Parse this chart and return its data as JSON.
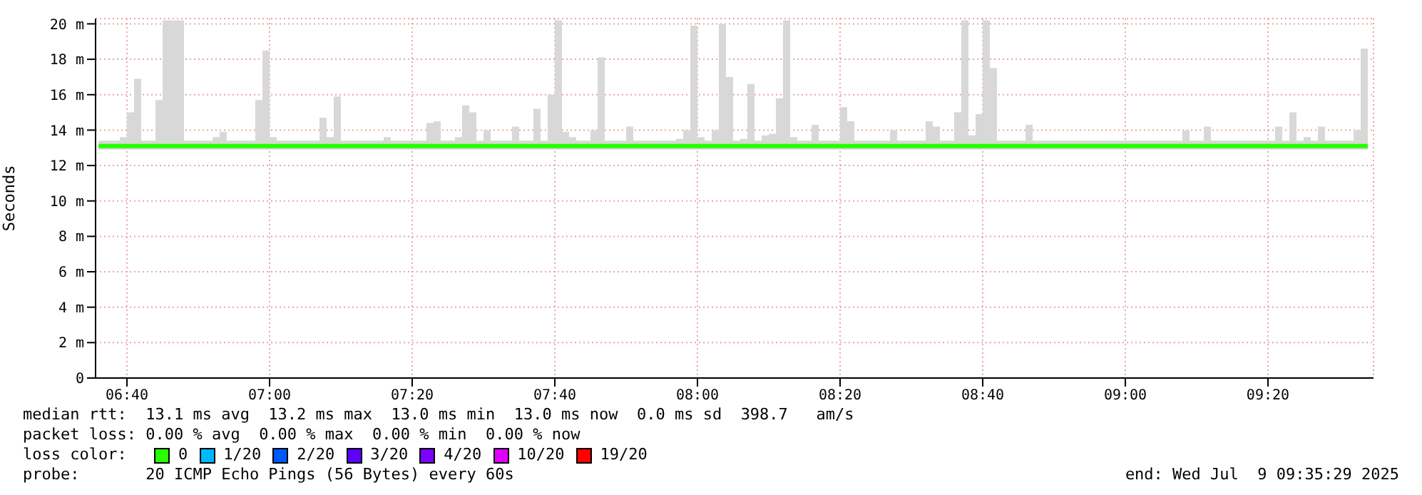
{
  "chart_data": {
    "type": "step",
    "ylabel": "Seconds",
    "grid": true,
    "xlim": [
      6.5933,
      9.58
    ],
    "xticks": [
      {
        "value": 6.6667,
        "label": "06:40"
      },
      {
        "value": 7,
        "label": "07:00"
      },
      {
        "value": 7.3333,
        "label": "07:20"
      },
      {
        "value": 7.6667,
        "label": "07:40"
      },
      {
        "value": 8,
        "label": "08:00"
      },
      {
        "value": 8.3333,
        "label": "08:20"
      },
      {
        "value": 8.6667,
        "label": "08:40"
      },
      {
        "value": 9,
        "label": "09:00"
      },
      {
        "value": 9.3333,
        "label": "09:20"
      }
    ],
    "ylim": [
      0,
      20.3
    ],
    "yticks": [
      0,
      {
        "value": 2,
        "label": "2 m"
      },
      {
        "value": 4,
        "label": "4 m"
      },
      {
        "value": 6,
        "label": "6 m"
      },
      {
        "value": 8,
        "label": "8 m"
      },
      {
        "value": 10,
        "label": "10 m"
      },
      {
        "value": 12,
        "label": "12 m"
      },
      {
        "value": 14,
        "label": "14 m"
      },
      {
        "value": 16,
        "label": "16 m"
      },
      {
        "value": 18,
        "label": "18 m"
      },
      {
        "value": 20,
        "label": "20 m"
      }
    ],
    "x": [
      6.6,
      6.6167,
      6.6333,
      6.65,
      6.6667,
      6.6833,
      6.7,
      6.7167,
      6.7333,
      6.75,
      6.7667,
      6.7833,
      6.8,
      6.8167,
      6.8333,
      6.85,
      6.8667,
      6.8833,
      6.9,
      6.9167,
      6.9333,
      6.95,
      6.9667,
      6.9833,
      7.0,
      7.0167,
      7.0333,
      7.05,
      7.0667,
      7.0833,
      7.1,
      7.1167,
      7.1333,
      7.15,
      7.1667,
      7.1833,
      7.2,
      7.2167,
      7.2333,
      7.25,
      7.2667,
      7.2833,
      7.3,
      7.3167,
      7.3333,
      7.35,
      7.3667,
      7.3833,
      7.4,
      7.4167,
      7.4333,
      7.45,
      7.4667,
      7.4833,
      7.5,
      7.5167,
      7.5333,
      7.55,
      7.5667,
      7.5833,
      7.6,
      7.6167,
      7.6333,
      7.65,
      7.6667,
      7.6833,
      7.7,
      7.7167,
      7.7333,
      7.75,
      7.7667,
      7.7833,
      7.8,
      7.8167,
      7.8333,
      7.85,
      7.8667,
      7.8833,
      7.9,
      7.9167,
      7.9333,
      7.95,
      7.9667,
      7.9833,
      8.0,
      8.0167,
      8.0333,
      8.05,
      8.0667,
      8.0833,
      8.1,
      8.1167,
      8.1333,
      8.15,
      8.1667,
      8.1833,
      8.2,
      8.2167,
      8.2333,
      8.25,
      8.2667,
      8.2833,
      8.3,
      8.3167,
      8.3333,
      8.35,
      8.3667,
      8.3833,
      8.4,
      8.4167,
      8.4333,
      8.45,
      8.4667,
      8.4833,
      8.5,
      8.5167,
      8.5333,
      8.55,
      8.5667,
      8.5833,
      8.6,
      8.6167,
      8.6333,
      8.65,
      8.6667,
      8.6833,
      8.7,
      8.7167,
      8.7333,
      8.75,
      8.7667,
      8.7833,
      8.8,
      8.8167,
      8.8333,
      8.85,
      8.8667,
      8.8833,
      8.9,
      8.9167,
      8.9333,
      8.95,
      8.9667,
      8.9833,
      9.0,
      9.0167,
      9.0333,
      9.05,
      9.0667,
      9.0833,
      9.1,
      9.1167,
      9.1333,
      9.15,
      9.1667,
      9.1833,
      9.2,
      9.2167,
      9.2333,
      9.25,
      9.2667,
      9.2833,
      9.3,
      9.3167,
      9.3333,
      9.35,
      9.3667,
      9.3833,
      9.4,
      9.4167,
      9.4333,
      9.45,
      9.4667,
      9.4833,
      9.5,
      9.5167,
      9.5333,
      9.55,
      9.5667
    ],
    "series": [
      {
        "color": "#26ff00",
        "values": [
          13.1,
          13.1,
          13.1,
          13.1,
          13.1,
          13.1,
          13.1,
          13.1,
          13.1,
          13.1,
          13.1,
          13.1,
          13.1,
          13.1,
          13.1,
          13.1,
          13.1,
          13.1,
          13.1,
          13.1,
          13.1,
          13.1,
          13.1,
          13.1,
          13.1,
          13.1,
          13.1,
          13.1,
          13.1,
          13.1,
          13.1,
          13.1,
          13.1,
          13.1,
          13.1,
          13.1,
          13.1,
          13.1,
          13.1,
          13.1,
          13.1,
          13.1,
          13.1,
          13.1,
          13.1,
          13.1,
          13.1,
          13.1,
          13.1,
          13.1,
          13.1,
          13.1,
          13.1,
          13.1,
          13.1,
          13.1,
          13.1,
          13.1,
          13.1,
          13.1,
          13.1,
          13.1,
          13.1,
          13.1,
          13.1,
          13.1,
          13.1,
          13.1,
          13.1,
          13.1,
          13.1,
          13.1,
          13.1,
          13.1,
          13.1,
          13.1,
          13.1,
          13.1,
          13.1,
          13.1,
          13.1,
          13.1,
          13.1,
          13.1,
          13.1,
          13.1,
          13.1,
          13.1,
          13.1,
          13.1,
          13.1,
          13.1,
          13.1,
          13.1,
          13.1,
          13.1,
          13.1,
          13.1,
          13.1,
          13.1,
          13.1,
          13.1,
          13.1,
          13.1,
          13.1,
          13.1,
          13.1,
          13.1,
          13.1,
          13.1,
          13.1,
          13.1,
          13.1,
          13.1,
          13.1,
          13.1,
          13.1,
          13.1,
          13.1,
          13.1,
          13.1,
          13.1,
          13.1,
          13.1,
          13.1,
          13.1,
          13.1,
          13.1,
          13.1,
          13.1,
          13.1,
          13.1,
          13.1,
          13.1,
          13.1,
          13.1,
          13.1,
          13.1,
          13.1,
          13.1,
          13.1,
          13.1,
          13.1,
          13.1,
          13.1,
          13.1,
          13.1,
          13.1,
          13.1,
          13.1,
          13.1,
          13.1,
          13.1,
          13.1,
          13.1,
          13.1,
          13.1,
          13.1,
          13.1,
          13.1,
          13.1,
          13.1,
          13.1,
          13.1,
          13.1,
          13.1,
          13.1,
          13.1,
          13.1,
          13.1,
          13.1,
          13.1,
          13.1,
          13.1,
          13.1,
          13.1,
          13.1,
          13.1,
          13.1
        ],
        "lower": [
          12.9,
          12.9,
          12.9,
          12.9,
          12.9,
          12.9,
          12.9,
          12.9,
          12.9,
          12.9,
          12.9,
          12.9,
          12.9,
          12.9,
          12.9,
          12.9,
          12.9,
          12.9,
          12.9,
          12.9,
          12.9,
          12.9,
          12.9,
          12.9,
          12.9,
          12.9,
          12.9,
          12.9,
          12.9,
          12.9,
          12.9,
          12.9,
          12.9,
          12.9,
          12.9,
          12.9,
          12.9,
          12.9,
          12.9,
          12.9,
          12.9,
          12.9,
          12.9,
          12.9,
          12.9,
          12.9,
          12.9,
          12.9,
          12.9,
          12.9,
          12.9,
          12.9,
          12.9,
          12.9,
          12.9,
          12.9,
          12.9,
          12.9,
          12.9,
          12.9,
          12.9,
          12.9,
          12.9,
          12.9,
          12.9,
          12.9,
          12.9,
          12.9,
          12.9,
          12.9,
          12.9,
          12.9,
          12.9,
          12.9,
          12.9,
          12.9,
          12.9,
          12.9,
          12.9,
          12.9,
          12.9,
          12.9,
          12.9,
          12.9,
          12.9,
          12.9,
          12.9,
          12.9,
          12.9,
          12.9,
          12.9,
          12.9,
          12.9,
          12.9,
          12.9,
          12.9,
          12.9,
          12.9,
          12.9,
          12.9,
          12.9,
          12.9,
          12.9,
          12.9,
          12.9,
          12.9,
          12.9,
          12.9,
          12.9,
          12.9,
          12.9,
          12.9,
          12.9,
          12.9,
          12.9,
          12.9,
          12.9,
          12.9,
          12.9,
          12.9,
          12.9,
          12.9,
          12.9,
          12.9,
          12.9,
          12.9,
          12.9,
          12.9,
          12.9,
          12.9,
          12.9,
          12.9,
          12.9,
          12.9,
          12.9,
          12.9,
          12.9,
          12.9,
          12.9,
          12.9,
          12.9,
          12.9,
          12.9,
          12.9,
          12.9,
          12.9,
          12.9,
          12.9,
          12.9,
          12.9,
          12.9,
          12.9,
          12.9,
          12.9,
          12.9,
          12.9,
          12.9,
          12.9,
          12.9,
          12.9,
          12.9,
          12.9,
          12.9,
          12.9,
          12.9,
          12.9,
          12.9,
          12.9,
          12.9,
          12.9,
          12.9,
          12.9,
          12.9,
          12.9,
          12.9,
          12.9,
          12.9,
          12.9,
          12.9
        ],
        "upper": [
          13.4,
          13.4,
          13.4,
          13.6,
          15.0,
          16.9,
          13.4,
          13.4,
          15.7,
          20.2,
          20.2,
          20.2,
          13.4,
          13.4,
          13.4,
          13.4,
          13.6,
          13.9,
          13.4,
          13.4,
          13.4,
          13.4,
          15.7,
          18.5,
          13.6,
          13.4,
          13.4,
          13.4,
          13.4,
          13.4,
          13.4,
          14.7,
          13.6,
          15.9,
          13.4,
          13.4,
          13.4,
          13.4,
          13.4,
          13.4,
          13.6,
          13.4,
          13.4,
          13.4,
          13.4,
          13.4,
          14.4,
          14.5,
          13.4,
          13.4,
          13.6,
          15.4,
          15.0,
          13.4,
          14.0,
          13.4,
          13.4,
          13.4,
          14.2,
          13.4,
          13.4,
          15.2,
          13.4,
          16.0,
          20.2,
          13.9,
          13.6,
          13.4,
          13.4,
          14.0,
          18.1,
          13.4,
          13.4,
          13.4,
          14.2,
          13.4,
          13.4,
          13.4,
          13.4,
          13.4,
          13.4,
          13.5,
          14.0,
          19.9,
          13.6,
          13.4,
          14.0,
          20.0,
          17.0,
          13.4,
          13.5,
          16.6,
          13.4,
          13.7,
          13.8,
          15.8,
          20.2,
          13.6,
          13.4,
          13.4,
          14.3,
          13.4,
          13.4,
          13.4,
          15.3,
          14.5,
          13.4,
          13.4,
          13.4,
          13.4,
          13.4,
          14.0,
          13.4,
          13.4,
          13.4,
          13.4,
          14.5,
          14.2,
          13.4,
          13.4,
          15.0,
          20.2,
          13.7,
          14.9,
          20.2,
          17.5,
          13.4,
          13.4,
          13.4,
          13.4,
          14.3,
          13.4,
          13.4,
          13.4,
          13.4,
          13.4,
          13.4,
          13.4,
          13.4,
          13.4,
          13.4,
          13.4,
          13.4,
          13.4,
          13.4,
          13.4,
          13.4,
          13.4,
          13.4,
          13.4,
          13.4,
          13.4,
          14.0,
          13.4,
          13.4,
          14.2,
          13.4,
          13.4,
          13.4,
          13.4,
          13.4,
          13.4,
          13.4,
          13.4,
          13.4,
          14.2,
          13.4,
          15.0,
          13.4,
          13.6,
          13.4,
          14.2,
          13.4,
          13.4,
          13.4,
          13.4,
          14.0,
          18.6,
          13.4
        ]
      }
    ],
    "annotations": [
      "median rtt:  13.1 ms avg  13.2 ms max  13.0 ms min  13.0 ms now  0.0 ms sd  398.7   am/s",
      "packet loss: 0.00 % avg  0.00 % max  0.00 % min  0.00 % now",
      "loss color:",
      "0",
      "1/20",
      "2/20",
      "3/20",
      "4/20",
      "10/20",
      "19/20",
      "probe:       20 ICMP Echo Pings (56 Bytes) every 60s",
      "end: Wed Jul  9 09:35:29 2025"
    ]
  }
}
